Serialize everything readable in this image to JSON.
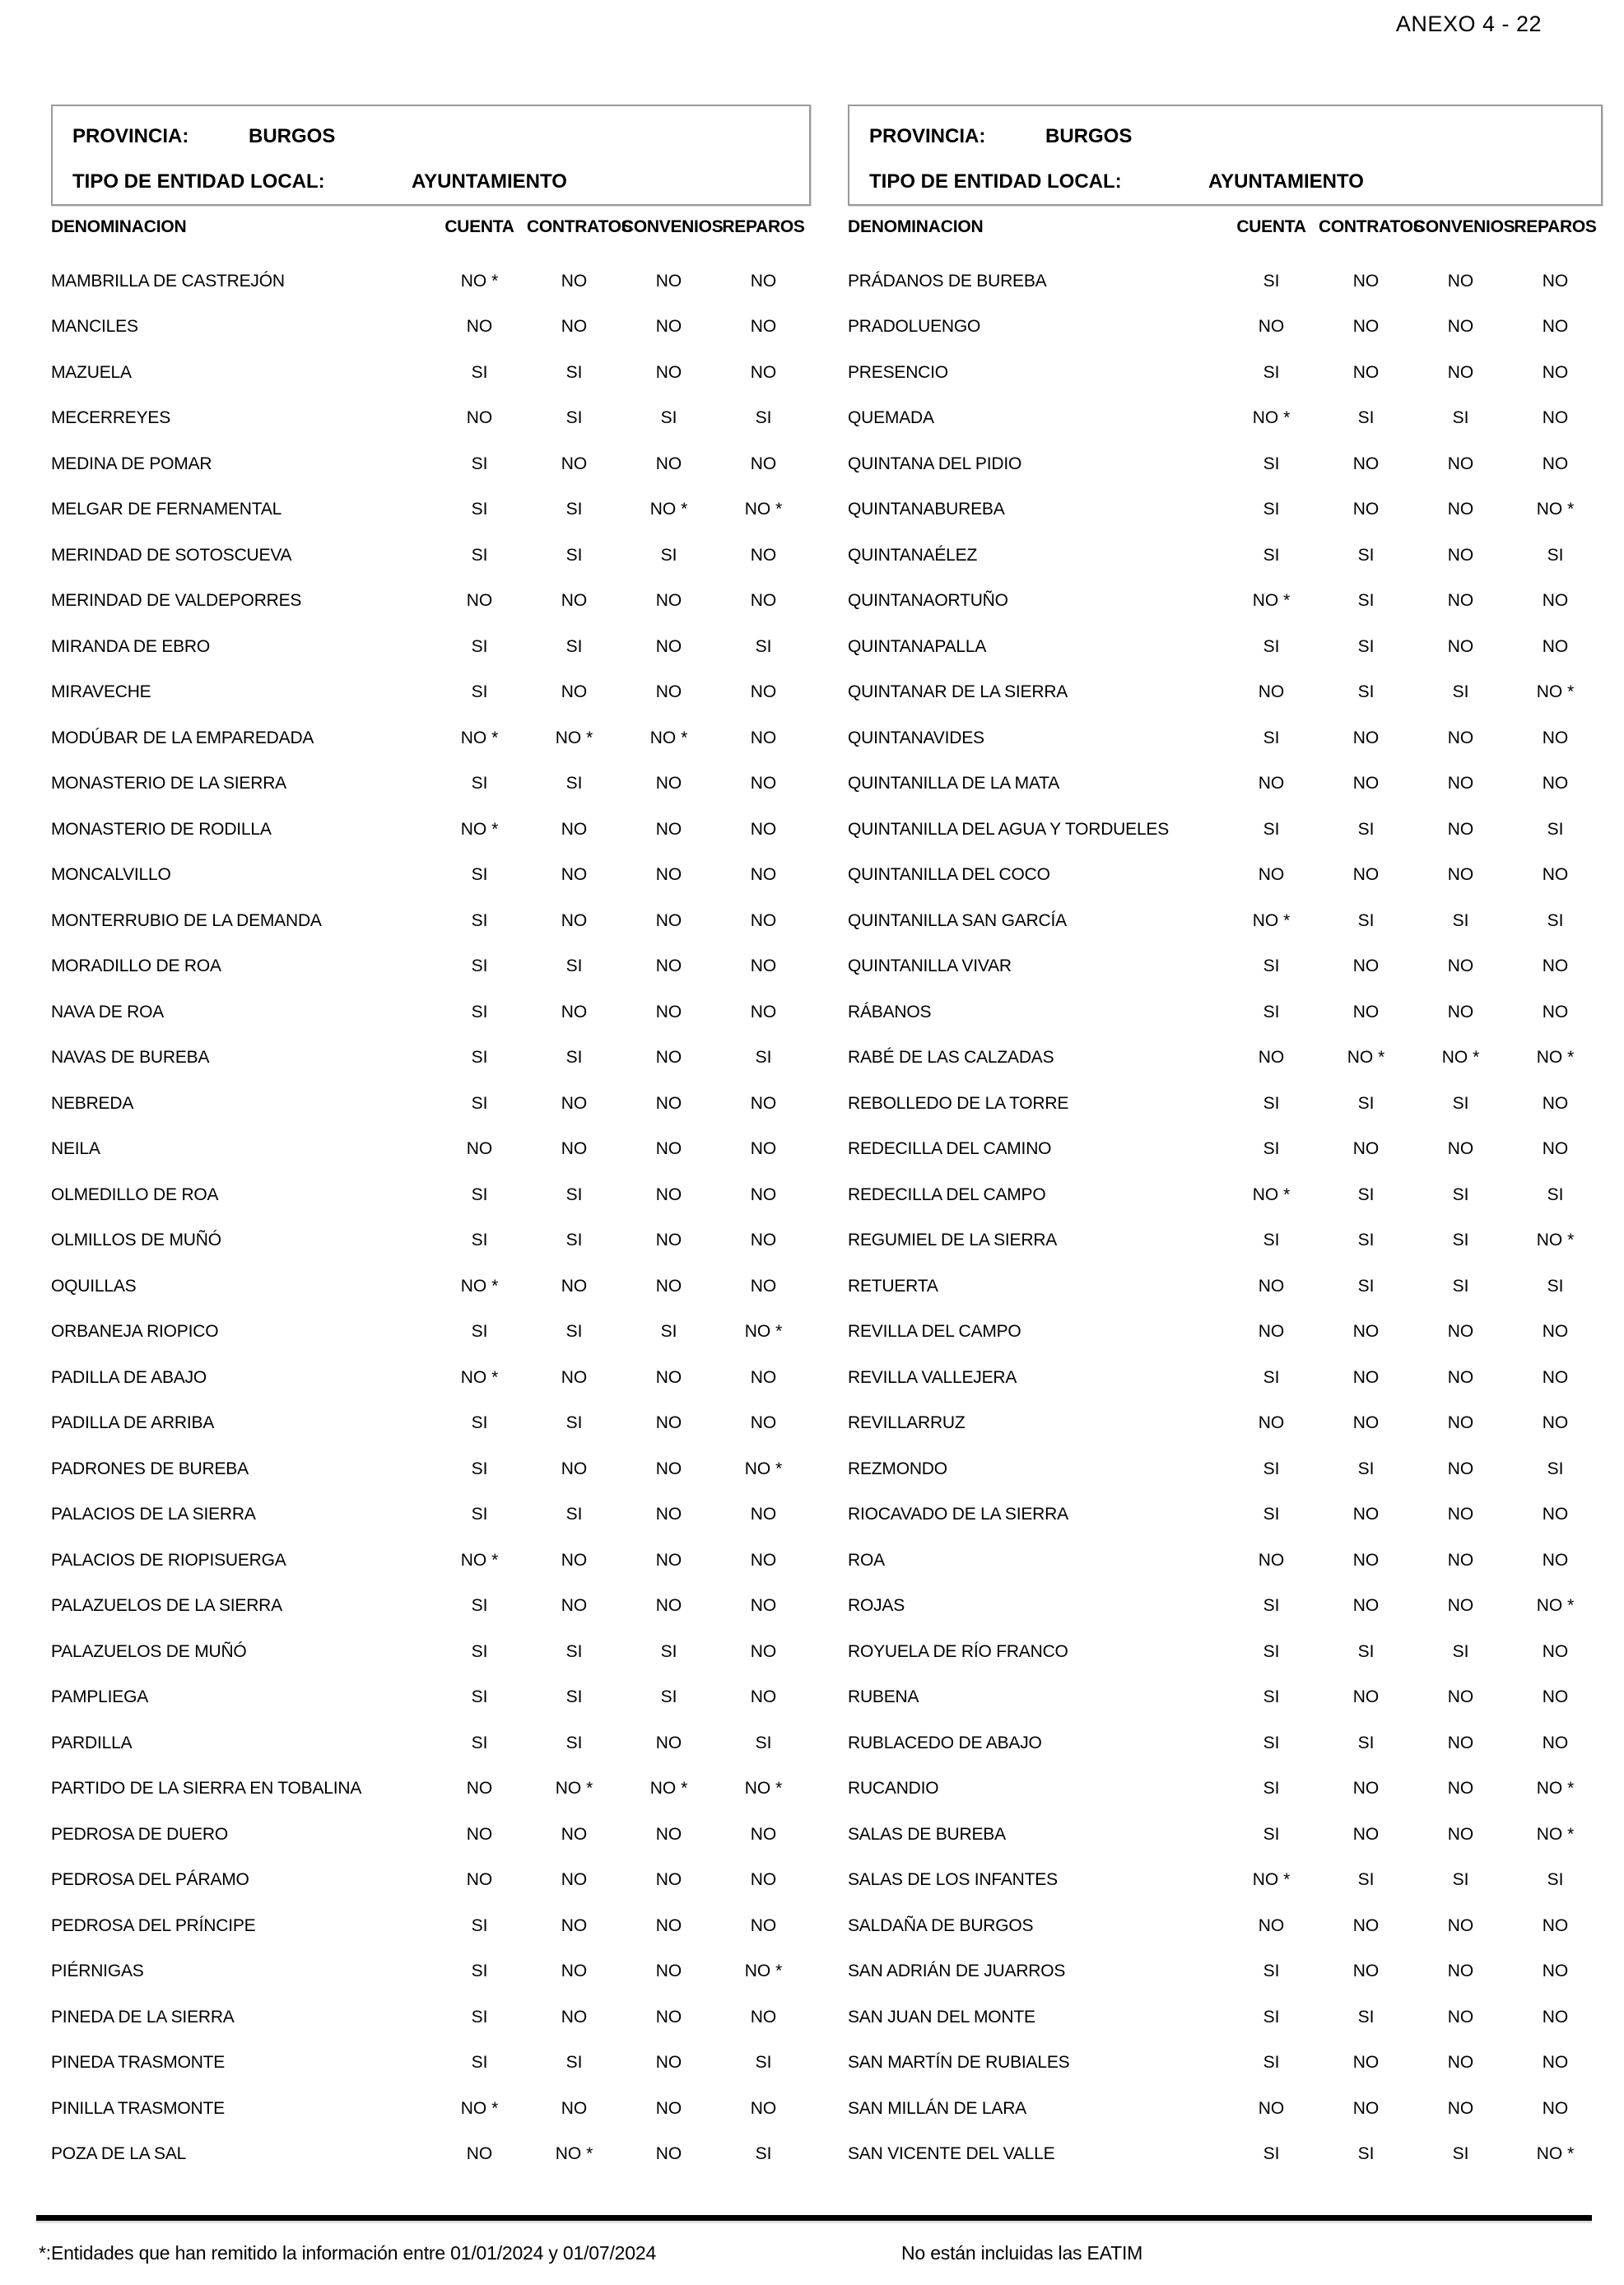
{
  "page": {
    "annex": "ANEXO 4 - 22",
    "footnote_left": "*:Entidades que han remitido la información entre 01/01/2024 y 01/07/2024",
    "footnote_right": "No están incluidas las EATIM"
  },
  "labels": {
    "denominacion": "DENOMINACION"
  },
  "columns": [
    "CUENTA",
    "CONTRATOS",
    "CONVENIOS",
    "REPAROS"
  ],
  "panels": [
    {
      "provincia_label": "PROVINCIA:",
      "provincia": "BURGOS",
      "tipo_label": "TIPO DE ENTIDAD LOCAL:",
      "tipo": "AYUNTAMIENTO",
      "rows": [
        {
          "name": "MAMBRILLA DE CASTREJÓN",
          "values": [
            "NO *",
            "NO",
            "NO",
            "NO"
          ]
        },
        {
          "name": "MANCILES",
          "values": [
            "NO",
            "NO",
            "NO",
            "NO"
          ]
        },
        {
          "name": "MAZUELA",
          "values": [
            "SI",
            "SI",
            "NO",
            "NO"
          ]
        },
        {
          "name": "MECERREYES",
          "values": [
            "NO",
            "SI",
            "SI",
            "SI"
          ]
        },
        {
          "name": "MEDINA DE POMAR",
          "values": [
            "SI",
            "NO",
            "NO",
            "NO"
          ]
        },
        {
          "name": "MELGAR DE FERNAMENTAL",
          "values": [
            "SI",
            "SI",
            "NO *",
            "NO *"
          ]
        },
        {
          "name": "MERINDAD DE SOTOSCUEVA",
          "values": [
            "SI",
            "SI",
            "SI",
            "NO"
          ]
        },
        {
          "name": "MERINDAD DE VALDEPORRES",
          "values": [
            "NO",
            "NO",
            "NO",
            "NO"
          ]
        },
        {
          "name": "MIRANDA DE EBRO",
          "values": [
            "SI",
            "SI",
            "NO",
            "SI"
          ]
        },
        {
          "name": "MIRAVECHE",
          "values": [
            "SI",
            "NO",
            "NO",
            "NO"
          ]
        },
        {
          "name": "MODÚBAR DE LA EMPAREDADA",
          "values": [
            "NO *",
            "NO *",
            "NO *",
            "NO"
          ]
        },
        {
          "name": "MONASTERIO DE LA SIERRA",
          "values": [
            "SI",
            "SI",
            "NO",
            "NO"
          ]
        },
        {
          "name": "MONASTERIO DE RODILLA",
          "values": [
            "NO *",
            "NO",
            "NO",
            "NO"
          ]
        },
        {
          "name": "MONCALVILLO",
          "values": [
            "SI",
            "NO",
            "NO",
            "NO"
          ]
        },
        {
          "name": "MONTERRUBIO DE LA DEMANDA",
          "values": [
            "SI",
            "NO",
            "NO",
            "NO"
          ]
        },
        {
          "name": "MORADILLO DE ROA",
          "values": [
            "SI",
            "SI",
            "NO",
            "NO"
          ]
        },
        {
          "name": "NAVA DE ROA",
          "values": [
            "SI",
            "NO",
            "NO",
            "NO"
          ]
        },
        {
          "name": "NAVAS DE BUREBA",
          "values": [
            "SI",
            "SI",
            "NO",
            "SI"
          ]
        },
        {
          "name": "NEBREDA",
          "values": [
            "SI",
            "NO",
            "NO",
            "NO"
          ]
        },
        {
          "name": "NEILA",
          "values": [
            "NO",
            "NO",
            "NO",
            "NO"
          ]
        },
        {
          "name": "OLMEDILLO DE ROA",
          "values": [
            "SI",
            "SI",
            "NO",
            "NO"
          ]
        },
        {
          "name": "OLMILLOS DE MUÑÓ",
          "values": [
            "SI",
            "SI",
            "NO",
            "NO"
          ]
        },
        {
          "name": "OQUILLAS",
          "values": [
            "NO *",
            "NO",
            "NO",
            "NO"
          ]
        },
        {
          "name": "ORBANEJA RIOPICO",
          "values": [
            "SI",
            "SI",
            "SI",
            "NO *"
          ]
        },
        {
          "name": "PADILLA DE ABAJO",
          "values": [
            "NO *",
            "NO",
            "NO",
            "NO"
          ]
        },
        {
          "name": "PADILLA DE ARRIBA",
          "values": [
            "SI",
            "SI",
            "NO",
            "NO"
          ]
        },
        {
          "name": "PADRONES DE BUREBA",
          "values": [
            "SI",
            "NO",
            "NO",
            "NO *"
          ]
        },
        {
          "name": "PALACIOS DE LA SIERRA",
          "values": [
            "SI",
            "SI",
            "NO",
            "NO"
          ]
        },
        {
          "name": "PALACIOS DE RIOPISUERGA",
          "values": [
            "NO *",
            "NO",
            "NO",
            "NO"
          ]
        },
        {
          "name": "PALAZUELOS DE LA SIERRA",
          "values": [
            "SI",
            "NO",
            "NO",
            "NO"
          ]
        },
        {
          "name": "PALAZUELOS DE MUÑÓ",
          "values": [
            "SI",
            "SI",
            "SI",
            "NO"
          ]
        },
        {
          "name": "PAMPLIEGA",
          "values": [
            "SI",
            "SI",
            "SI",
            "NO"
          ]
        },
        {
          "name": "PARDILLA",
          "values": [
            "SI",
            "SI",
            "NO",
            "SI"
          ]
        },
        {
          "name": "PARTIDO DE LA SIERRA EN TOBALINA",
          "values": [
            "NO",
            "NO *",
            "NO *",
            "NO *"
          ]
        },
        {
          "name": "PEDROSA DE DUERO",
          "values": [
            "NO",
            "NO",
            "NO",
            "NO"
          ]
        },
        {
          "name": "PEDROSA DEL PÁRAMO",
          "values": [
            "NO",
            "NO",
            "NO",
            "NO"
          ]
        },
        {
          "name": "PEDROSA DEL PRÍNCIPE",
          "values": [
            "SI",
            "NO",
            "NO",
            "NO"
          ]
        },
        {
          "name": "PIÉRNIGAS",
          "values": [
            "SI",
            "NO",
            "NO",
            "NO *"
          ]
        },
        {
          "name": "PINEDA DE LA SIERRA",
          "values": [
            "SI",
            "NO",
            "NO",
            "NO"
          ]
        },
        {
          "name": "PINEDA TRASMONTE",
          "values": [
            "SI",
            "SI",
            "NO",
            "SI"
          ]
        },
        {
          "name": "PINILLA TRASMONTE",
          "values": [
            "NO *",
            "NO",
            "NO",
            "NO"
          ]
        },
        {
          "name": "POZA DE LA SAL",
          "values": [
            "NO",
            "NO *",
            "NO",
            "SI"
          ]
        }
      ]
    },
    {
      "provincia_label": "PROVINCIA:",
      "provincia": "BURGOS",
      "tipo_label": "TIPO DE ENTIDAD LOCAL:",
      "tipo": "AYUNTAMIENTO",
      "rows": [
        {
          "name": "PRÁDANOS DE BUREBA",
          "values": [
            "SI",
            "NO",
            "NO",
            "NO"
          ]
        },
        {
          "name": "PRADOLUENGO",
          "values": [
            "NO",
            "NO",
            "NO",
            "NO"
          ]
        },
        {
          "name": "PRESENCIO",
          "values": [
            "SI",
            "NO",
            "NO",
            "NO"
          ]
        },
        {
          "name": "QUEMADA",
          "values": [
            "NO *",
            "SI",
            "SI",
            "NO"
          ]
        },
        {
          "name": "QUINTANA DEL PIDIO",
          "values": [
            "SI",
            "NO",
            "NO",
            "NO"
          ]
        },
        {
          "name": "QUINTANABUREBA",
          "values": [
            "SI",
            "NO",
            "NO",
            "NO *"
          ]
        },
        {
          "name": "QUINTANAÉLEZ",
          "values": [
            "SI",
            "SI",
            "NO",
            "SI"
          ]
        },
        {
          "name": "QUINTANAORTUÑO",
          "values": [
            "NO *",
            "SI",
            "NO",
            "NO"
          ]
        },
        {
          "name": "QUINTANAPALLA",
          "values": [
            "SI",
            "SI",
            "NO",
            "NO"
          ]
        },
        {
          "name": "QUINTANAR DE LA SIERRA",
          "values": [
            "NO",
            "SI",
            "SI",
            "NO *"
          ]
        },
        {
          "name": "QUINTANAVIDES",
          "values": [
            "SI",
            "NO",
            "NO",
            "NO"
          ]
        },
        {
          "name": "QUINTANILLA DE LA MATA",
          "values": [
            "NO",
            "NO",
            "NO",
            "NO"
          ]
        },
        {
          "name": "QUINTANILLA DEL AGUA Y TORDUELES",
          "values": [
            "SI",
            "SI",
            "NO",
            "SI"
          ]
        },
        {
          "name": "QUINTANILLA DEL COCO",
          "values": [
            "NO",
            "NO",
            "NO",
            "NO"
          ]
        },
        {
          "name": "QUINTANILLA SAN GARCÍA",
          "values": [
            "NO *",
            "SI",
            "SI",
            "SI"
          ]
        },
        {
          "name": "QUINTANILLA VIVAR",
          "values": [
            "SI",
            "NO",
            "NO",
            "NO"
          ]
        },
        {
          "name": "RÁBANOS",
          "values": [
            "SI",
            "NO",
            "NO",
            "NO"
          ]
        },
        {
          "name": "RABÉ DE LAS CALZADAS",
          "values": [
            "NO",
            "NO *",
            "NO *",
            "NO *"
          ]
        },
        {
          "name": "REBOLLEDO DE LA TORRE",
          "values": [
            "SI",
            "SI",
            "SI",
            "NO"
          ]
        },
        {
          "name": "REDECILLA DEL CAMINO",
          "values": [
            "SI",
            "NO",
            "NO",
            "NO"
          ]
        },
        {
          "name": "REDECILLA DEL CAMPO",
          "values": [
            "NO *",
            "SI",
            "SI",
            "SI"
          ]
        },
        {
          "name": "REGUMIEL DE LA SIERRA",
          "values": [
            "SI",
            "SI",
            "SI",
            "NO *"
          ]
        },
        {
          "name": "RETUERTA",
          "values": [
            "NO",
            "SI",
            "SI",
            "SI"
          ]
        },
        {
          "name": "REVILLA DEL CAMPO",
          "values": [
            "NO",
            "NO",
            "NO",
            "NO"
          ]
        },
        {
          "name": "REVILLA VALLEJERA",
          "values": [
            "SI",
            "NO",
            "NO",
            "NO"
          ]
        },
        {
          "name": "REVILLARRUZ",
          "values": [
            "NO",
            "NO",
            "NO",
            "NO"
          ]
        },
        {
          "name": "REZMONDO",
          "values": [
            "SI",
            "SI",
            "NO",
            "SI"
          ]
        },
        {
          "name": "RIOCAVADO DE LA SIERRA",
          "values": [
            "SI",
            "NO",
            "NO",
            "NO"
          ]
        },
        {
          "name": "ROA",
          "values": [
            "NO",
            "NO",
            "NO",
            "NO"
          ]
        },
        {
          "name": "ROJAS",
          "values": [
            "SI",
            "NO",
            "NO",
            "NO *"
          ]
        },
        {
          "name": "ROYUELA DE RÍO FRANCO",
          "values": [
            "SI",
            "SI",
            "SI",
            "NO"
          ]
        },
        {
          "name": "RUBENA",
          "values": [
            "SI",
            "NO",
            "NO",
            "NO"
          ]
        },
        {
          "name": "RUBLACEDO DE ABAJO",
          "values": [
            "SI",
            "SI",
            "NO",
            "NO"
          ]
        },
        {
          "name": "RUCANDIO",
          "values": [
            "SI",
            "NO",
            "NO",
            "NO *"
          ]
        },
        {
          "name": "SALAS DE BUREBA",
          "values": [
            "SI",
            "NO",
            "NO",
            "NO *"
          ]
        },
        {
          "name": "SALAS DE LOS INFANTES",
          "values": [
            "NO *",
            "SI",
            "SI",
            "SI"
          ]
        },
        {
          "name": "SALDAÑA DE BURGOS",
          "values": [
            "NO",
            "NO",
            "NO",
            "NO"
          ]
        },
        {
          "name": "SAN ADRIÁN DE JUARROS",
          "values": [
            "SI",
            "NO",
            "NO",
            "NO"
          ]
        },
        {
          "name": "SAN JUAN DEL MONTE",
          "values": [
            "SI",
            "SI",
            "NO",
            "NO"
          ]
        },
        {
          "name": "SAN MARTÍN DE RUBIALES",
          "values": [
            "SI",
            "NO",
            "NO",
            "NO"
          ]
        },
        {
          "name": "SAN MILLÁN DE LARA",
          "values": [
            "NO",
            "NO",
            "NO",
            "NO"
          ]
        },
        {
          "name": "SAN VICENTE DEL VALLE",
          "values": [
            "SI",
            "SI",
            "SI",
            "NO *"
          ]
        }
      ]
    }
  ]
}
